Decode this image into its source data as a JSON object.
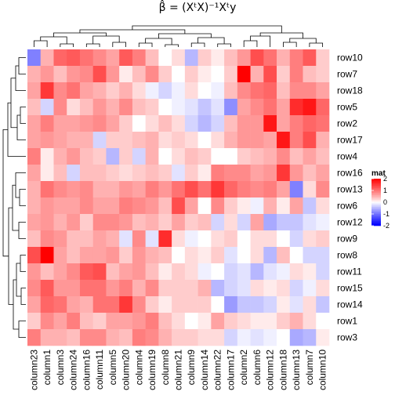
{
  "chart_data": {
    "type": "heatmap",
    "title": "β̂ = (XᵗX)⁻¹Xᵗy",
    "rows": [
      "row10",
      "row7",
      "row18",
      "row5",
      "row2",
      "row17",
      "row4",
      "row16",
      "row13",
      "row6",
      "row12",
      "row9",
      "row8",
      "row11",
      "row15",
      "row14",
      "row1",
      "row3"
    ],
    "columns": [
      "column23",
      "column1",
      "column3",
      "column24",
      "column16",
      "column11",
      "column5",
      "column20",
      "column4",
      "column19",
      "column8",
      "column21",
      "column9",
      "column14",
      "column22",
      "column17",
      "column2",
      "column6",
      "column12",
      "column18",
      "column13",
      "column7",
      "column10"
    ],
    "values": [
      [
        -0.9,
        0.5,
        1.1,
        1.2,
        1.0,
        0.8,
        0.6,
        1.2,
        0.9,
        0.4,
        0.0,
        0.2,
        -0.5,
        0.3,
        0.1,
        0.4,
        0.7,
        1.3,
        1.0,
        0.5,
        0.9,
        1.2,
        0.3
      ],
      [
        0.5,
        0.7,
        0.4,
        0.7,
        0.8,
        1.3,
        0.7,
        0.1,
        0.4,
        0.8,
        0.3,
        0.0,
        0.3,
        0.1,
        0.0,
        0.3,
        2.0,
        0.5,
        1.3,
        0.3,
        0.9,
        0.4,
        0.3
      ],
      [
        0.6,
        1.5,
        0.8,
        1.0,
        0.6,
        0.5,
        0.3,
        0.5,
        0.2,
        -0.1,
        -0.3,
        -0.1,
        0.2,
        0.0,
        -0.1,
        0.4,
        0.8,
        1.0,
        1.1,
        0.4,
        0.8,
        0.8,
        0.6
      ],
      [
        0.4,
        -0.3,
        0.8,
        0.2,
        0.4,
        0.7,
        0.5,
        0.8,
        0.4,
        0.3,
        0.0,
        -0.1,
        -0.2,
        -0.4,
        -0.2,
        -0.8,
        0.6,
        0.8,
        1.0,
        0.6,
        1.6,
        1.8,
        1.1
      ],
      [
        0.6,
        0.9,
        0.6,
        0.6,
        0.7,
        0.8,
        0.6,
        0.3,
        0.0,
        0.2,
        0.4,
        0.2,
        -0.3,
        -0.5,
        -0.3,
        0.4,
        0.7,
        0.7,
        1.8,
        0.6,
        0.9,
        1.1,
        1.0
      ],
      [
        0.6,
        0.7,
        0.6,
        0.5,
        0.5,
        -0.3,
        0.3,
        0.3,
        0.4,
        0.5,
        0.2,
        0.3,
        0.2,
        0.0,
        0.2,
        0.5,
        0.7,
        0.7,
        0.6,
        1.8,
        0.9,
        1.3,
        0.5
      ],
      [
        0.9,
        0.1,
        0.5,
        0.7,
        0.4,
        0.3,
        -0.5,
        0.3,
        -0.3,
        0.5,
        0.0,
        0.2,
        0.4,
        0.3,
        0.0,
        0.0,
        0.3,
        0.4,
        0.5,
        0.8,
        0.4,
        0.6,
        0.4
      ],
      [
        0.6,
        0.1,
        0.4,
        -0.3,
        0.4,
        0.4,
        0.3,
        0.2,
        0.3,
        0.4,
        0.3,
        -0.2,
        0.3,
        0.1,
        0.9,
        0.8,
        0.8,
        0.6,
        0.7,
        1.5,
        0.7,
        0.4,
        0.6
      ],
      [
        0.5,
        1.0,
        0.8,
        0.7,
        0.8,
        0.5,
        0.5,
        0.7,
        0.6,
        0.9,
        0.7,
        1.0,
        1.3,
        1.0,
        1.5,
        1.1,
        0.9,
        0.8,
        0.9,
        0.6,
        -0.9,
        0.2,
        0.8
      ],
      [
        0.5,
        0.7,
        0.6,
        0.6,
        0.8,
        0.6,
        0.6,
        0.9,
        0.8,
        0.7,
        0.4,
        1.3,
        0.6,
        0.0,
        0.8,
        0.3,
        0.1,
        -0.1,
        0.5,
        0.1,
        0.6,
        -0.4,
        0.2
      ],
      [
        0.6,
        0.7,
        0.5,
        0.7,
        0.3,
        0.8,
        0.8,
        0.7,
        0.4,
        0.5,
        0.3,
        0.6,
        0.3,
        0.4,
        -0.3,
        0.2,
        -0.3,
        0.6,
        -0.6,
        -0.4,
        -0.4,
        -0.2,
        -0.1
      ],
      [
        0.4,
        0.8,
        0.7,
        0.4,
        0.4,
        0.6,
        0.5,
        -0.2,
        0.8,
        -0.2,
        1.6,
        0.2,
        -0.1,
        0.0,
        0.2,
        0.3,
        0.0,
        0.2,
        0.2,
        0.0,
        -0.3,
        0.2,
        0.3
      ],
      [
        1.3,
        2.0,
        0.6,
        0.4,
        0.6,
        0.6,
        0.7,
        0.3,
        0.7,
        0.5,
        0.4,
        0.0,
        0.2,
        0.1,
        0.3,
        -0.2,
        0.0,
        0.2,
        -0.5,
        0.4,
        0.0,
        -0.3,
        -0.3
      ],
      [
        0.7,
        0.4,
        0.6,
        0.8,
        1.2,
        1.3,
        0.4,
        0.6,
        0.7,
        0.4,
        0.1,
        0.3,
        0.2,
        -0.1,
        0.0,
        -0.3,
        -0.2,
        -0.5,
        -0.2,
        -0.1,
        0.2,
        0.1,
        -0.3
      ],
      [
        0.8,
        1.2,
        0.7,
        0.7,
        1.0,
        1.0,
        0.7,
        0.9,
        0.5,
        0.8,
        0.3,
        0.3,
        0.3,
        0.5,
        -0.5,
        -0.3,
        -0.2,
        0.2,
        0.1,
        0.2,
        -0.3,
        -0.1,
        0.2
      ],
      [
        0.6,
        1.1,
        1.0,
        0.6,
        0.5,
        1.0,
        1.0,
        1.5,
        0.8,
        0.3,
        0.1,
        0.3,
        0.3,
        0.3,
        0.0,
        -0.7,
        -0.4,
        -0.4,
        -0.3,
        0.1,
        -0.2,
        0.2,
        -0.4
      ],
      [
        0.3,
        0.8,
        0.6,
        0.9,
        0.4,
        0.3,
        0.6,
        0.6,
        0.7,
        0.9,
        0.4,
        0.2,
        0.0,
        0.1,
        0.6,
        0.3,
        0.2,
        0.1,
        0.1,
        0.3,
        0.5,
        0.2,
        0.0
      ],
      [
        0.9,
        0.5,
        0.5,
        0.4,
        0.8,
        0.8,
        0.5,
        0.4,
        0.9,
        0.8,
        0.5,
        0.3,
        0.3,
        0.2,
        0.2,
        -0.3,
        -0.1,
        -0.2,
        -0.1,
        0.0,
        -0.6,
        -0.5,
        0.1
      ]
    ],
    "legend": {
      "title": "mat",
      "ticks": [
        2,
        1,
        0,
        -1,
        -2
      ],
      "range": [
        -2,
        2
      ],
      "colors": {
        "low": "#0000ff",
        "mid": "#ffffff",
        "high": "#ff0000"
      }
    },
    "dendrograms": {
      "rows": true,
      "columns": true
    }
  }
}
